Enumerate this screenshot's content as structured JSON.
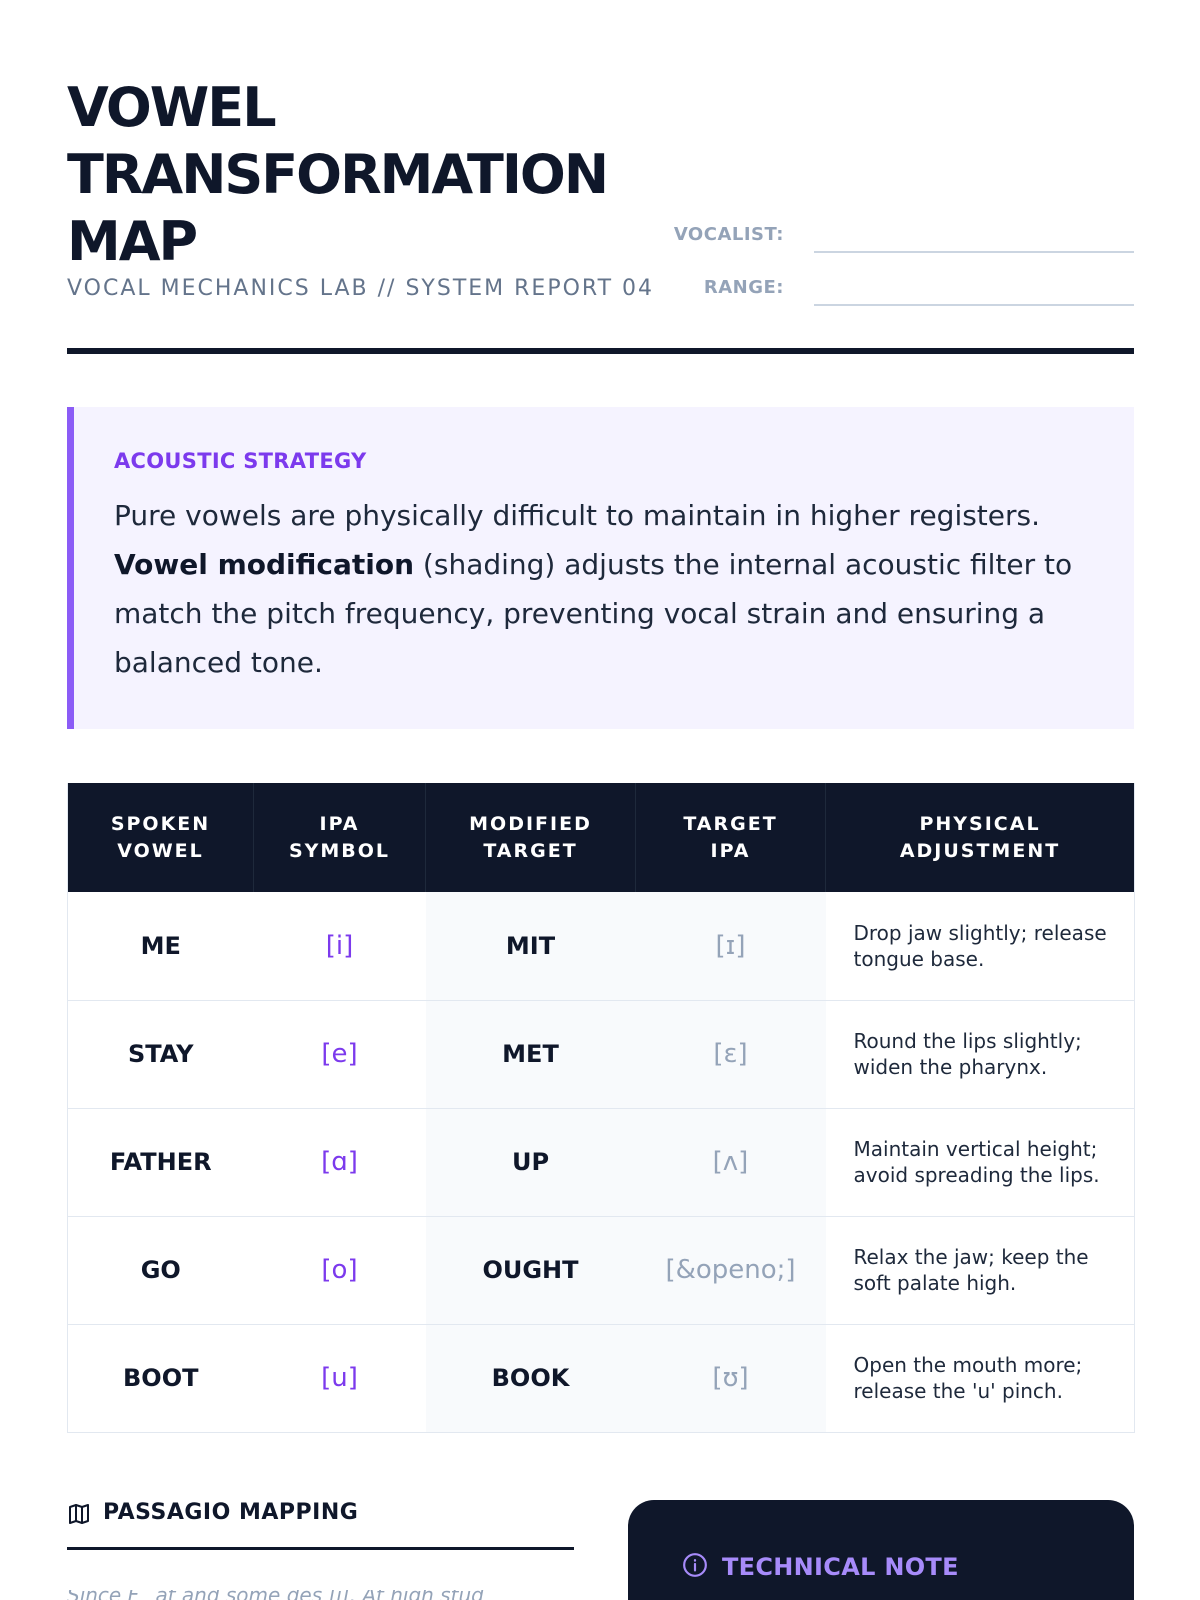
{
  "header": {
    "title_lines": [
      "VOWEL",
      "TRANSFORMATION",
      "MAP"
    ],
    "subtitle": "VOCAL MECHANICS LAB // SYSTEM REPORT 04",
    "fields": {
      "vocalist_label": "VOCALIST:",
      "vocalist_value": "",
      "range_label": "RANGE:",
      "range_value": ""
    }
  },
  "callout": {
    "heading": "ACOUSTIC STRATEGY",
    "text_before": "Pure vowels are physically difficult to maintain in higher registers. ",
    "bold_term": "Vowel modification",
    "text_after": " (shading) adjusts the internal acoustic filter to match the pitch frequency, preventing vocal strain and ensuring a balanced tone."
  },
  "table": {
    "headers": [
      [
        "SPOKEN",
        "VOWEL"
      ],
      [
        "IPA",
        "SYMBOL"
      ],
      [
        "MODIFIED",
        "TARGET"
      ],
      [
        "TARGET",
        "IPA"
      ],
      [
        "PHYSICAL",
        "ADJUSTMENT"
      ]
    ],
    "rows": [
      {
        "spoken": "ME",
        "ipa": "[i]",
        "modified": "MIT",
        "target_ipa": "[ɪ]",
        "adjustment": "Drop jaw slightly; release tongue base."
      },
      {
        "spoken": "STAY",
        "ipa": "[e]",
        "modified": "MET",
        "target_ipa": "[ɛ]",
        "adjustment": "Round the lips slightly; widen the pharynx."
      },
      {
        "spoken": "FATHER",
        "ipa": "[ɑ]",
        "modified": "UP",
        "target_ipa": "[ʌ]",
        "adjustment": "Maintain vertical height; avoid spreading the lips."
      },
      {
        "spoken": "GO",
        "ipa": "[o]",
        "modified": "OUGHT",
        "target_ipa": "[&openo;]",
        "adjustment": "Relax the jaw; keep the soft palate high."
      },
      {
        "spoken": "BOOT",
        "ipa": "[u]",
        "modified": "BOOK",
        "target_ipa": "[ʊ]",
        "adjustment": "Open the mouth more; release the 'u' pinch."
      }
    ]
  },
  "passaggio": {
    "title": "PASSAGIO MAPPING",
    "text": "Since F_ at and some des [i]. At high stud"
  },
  "technical_note": {
    "title": "TECHNICAL NOTE"
  },
  "colors": {
    "ink": "#0f172a",
    "accent": "#7c3aed",
    "muted": "#94a3b8",
    "callout_bg": "#f5f3ff"
  }
}
